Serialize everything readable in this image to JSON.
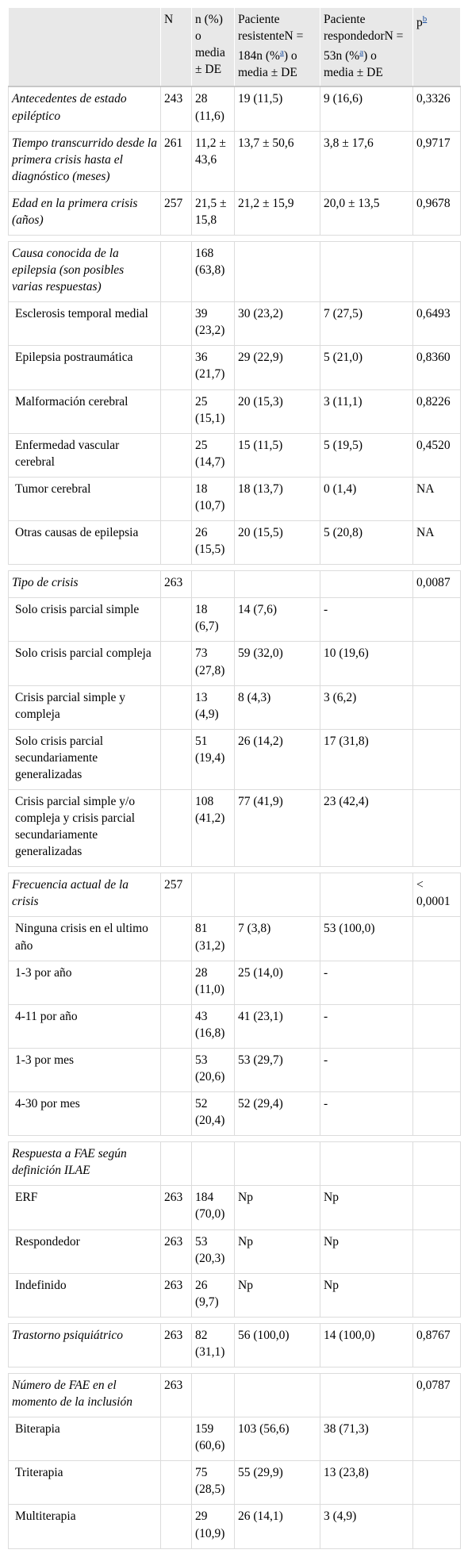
{
  "header": {
    "col_label": "",
    "col_n": "N",
    "col_total": "n (%) o media ± DE",
    "col_resist_a": "Paciente resistenteN = 184n (%",
    "col_resist_sup": "a",
    "col_resist_b": ") o media ± DE",
    "col_resp_a": "Paciente respondedorN = 53n (%",
    "col_resp_sup": "a",
    "col_resp_b": ") o media ± DE",
    "col_p": "p",
    "col_p_sup": "b"
  },
  "rows": [
    {
      "label": "Antecedentes de estado epiléptico",
      "n": "243",
      "total": "28 (11,6)",
      "resist": "19 (11,5)",
      "resp": "9 (16,6)",
      "p": "0,3326"
    },
    {
      "label": "Tiempo transcurrido desde la primera crisis hasta el diagnóstico (meses)",
      "n": "261",
      "total": "11,2 ± 43,6",
      "resist": "13,7 ± 50,6",
      "resp": "3,8 ± 17,6",
      "p": "0,9717"
    },
    {
      "label": "Edad en la primera crisis (años)",
      "n": "257",
      "total": "21,5 ± 15,8",
      "resist": "21,2 ± 15,9",
      "resp": "20,0 ± 13,5",
      "p": "0,9678"
    },
    {
      "label": "Causa conocida de la epilepsia (son posibles varias respuestas)",
      "n": "",
      "total": "168 (63,8)",
      "resist": "",
      "resp": "",
      "p": ""
    },
    {
      "label": "Esclerosis temporal medial",
      "n": "",
      "total": "39 (23,2)",
      "resist": "30 (23,2)",
      "resp": "7 (27,5)",
      "p": "0,6493"
    },
    {
      "label": "Epilepsia postraumática",
      "n": "",
      "total": "36 (21,7)",
      "resist": "29 (22,9)",
      "resp": "5 (21,0)",
      "p": "0,8360"
    },
    {
      "label": "Malformación cerebral",
      "n": "",
      "total": "25 (15,1)",
      "resist": "20 (15,3)",
      "resp": "3 (11,1)",
      "p": "0,8226"
    },
    {
      "label": "Enfermedad vascular cerebral",
      "n": "",
      "total": "25 (14,7)",
      "resist": "15 (11,5)",
      "resp": "5 (19,5)",
      "p": "0,4520"
    },
    {
      "label": "Tumor cerebral",
      "n": "",
      "total": "18 (10,7)",
      "resist": "18 (13,7)",
      "resp": "0 (1,4)",
      "p": "NA"
    },
    {
      "label": "Otras causas de epilepsia",
      "n": "",
      "total": "26 (15,5)",
      "resist": "20 (15,5)",
      "resp": "5 (20,8)",
      "p": "NA"
    },
    {
      "label": "Tipo de crisis",
      "n": "263",
      "total": "",
      "resist": "",
      "resp": "",
      "p": "0,0087"
    },
    {
      "label": "Solo crisis parcial simple",
      "n": "",
      "total": "18 (6,7)",
      "resist": "14 (7,6)",
      "resp": "-",
      "p": ""
    },
    {
      "label": "Solo crisis parcial compleja",
      "n": "",
      "total": "73 (27,8)",
      "resist": "59 (32,0)",
      "resp": "10 (19,6)",
      "p": ""
    },
    {
      "label": "Crisis parcial simple y compleja",
      "n": "",
      "total": "13 (4,9)",
      "resist": "8 (4,3)",
      "resp": "3 (6,2)",
      "p": ""
    },
    {
      "label": "Solo crisis parcial secundariamente generalizadas",
      "n": "",
      "total": "51 (19,4)",
      "resist": "26 (14,2)",
      "resp": "17 (31,8)",
      "p": ""
    },
    {
      "label": "Crisis parcial simple y/o compleja y crisis parcial secundariamente generalizadas",
      "n": "",
      "total": "108 (41,2)",
      "resist": "77 (41,9)",
      "resp": "23 (42,4)",
      "p": ""
    },
    {
      "label": "Frecuencia actual de la crisis",
      "n": "257",
      "total": "",
      "resist": "",
      "resp": "",
      "p": "< 0,0001"
    },
    {
      "label": "Ninguna crisis en el ultimo año",
      "n": "",
      "total": "81 (31,2)",
      "resist": "7 (3,8)",
      "resp": "53 (100,0)",
      "p": ""
    },
    {
      "label": "1-3 por año",
      "n": "",
      "total": "28 (11,0)",
      "resist": "25 (14,0)",
      "resp": "-",
      "p": ""
    },
    {
      "label": "4-11 por año",
      "n": "",
      "total": "43 (16,8)",
      "resist": "41 (23,1)",
      "resp": "-",
      "p": ""
    },
    {
      "label": "1-3 por mes",
      "n": "",
      "total": "53 (20,6)",
      "resist": "53 (29,7)",
      "resp": "-",
      "p": ""
    },
    {
      "label": "4-30 por mes",
      "n": "",
      "total": "52 (20,4)",
      "resist": "52 (29,4)",
      "resp": "-",
      "p": ""
    },
    {
      "label": "Respuesta a FAE según definición ILAE",
      "n": "",
      "total": "",
      "resist": "",
      "resp": "",
      "p": ""
    },
    {
      "label": "ERF",
      "n": "263",
      "total": "184 (70,0)",
      "resist": "Np",
      "resp": "Np",
      "p": ""
    },
    {
      "label": "Respondedor",
      "n": "263",
      "total": "53 (20,3)",
      "resist": "Np",
      "resp": "Np",
      "p": ""
    },
    {
      "label": "Indefinido",
      "n": "263",
      "total": "26 (9,7)",
      "resist": "Np",
      "resp": "Np",
      "p": ""
    },
    {
      "label": "Trastorno psiquiátrico",
      "n": "263",
      "total": "82 (31,1)",
      "resist": "56 (100,0)",
      "resp": "14 (100,0)",
      "p": "0,8767"
    },
    {
      "label": "Número de FAE en el momento de la inclusión",
      "n": "263",
      "total": "",
      "resist": "",
      "resp": "",
      "p": "0,0787"
    },
    {
      "label": "Biterapia",
      "n": "",
      "total": "159 (60,6)",
      "resist": "103 (56,6)",
      "resp": "38 (71,3)",
      "p": ""
    },
    {
      "label": "Triterapia",
      "n": "",
      "total": "75 (28,5)",
      "resist": "55 (29,9)",
      "resp": "13 (23,8)",
      "p": ""
    },
    {
      "label": "Multiterapia",
      "n": "",
      "total": "29 (10,9)",
      "resist": "26 (14,1)",
      "resp": "3 (4,9)",
      "p": ""
    }
  ]
}
